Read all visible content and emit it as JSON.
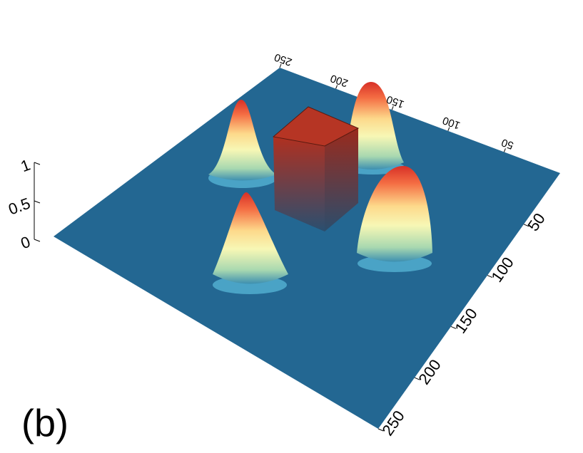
{
  "chart_data": {
    "type": "surface3d",
    "label": "(b)",
    "xlim": [
      0,
      250
    ],
    "xticks": [
      50,
      100,
      150,
      200,
      250
    ],
    "ylim": [
      0,
      250
    ],
    "yticks": [
      50,
      100,
      150,
      200,
      250
    ],
    "zlim": [
      0,
      1
    ],
    "zticks": [
      0,
      0.5,
      1
    ]
  }
}
